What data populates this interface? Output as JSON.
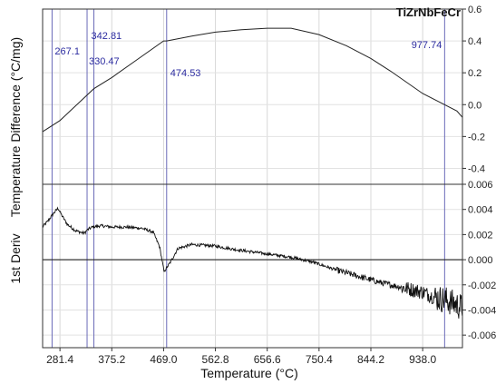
{
  "chart_data": [
    {
      "panel": "top",
      "type": "line",
      "title": "TiZrNbFeCr",
      "ylim": [
        -0.5,
        0.6
      ],
      "yticks": [
        "0.6",
        "0.4",
        "0.2",
        "0.0",
        "-0.2",
        "-0.4"
      ],
      "ylabel": "Temperature Difference (°C/mg)",
      "xlim": [
        250,
        1010
      ],
      "grid": true,
      "series": [
        {
          "x": [
            250,
            281.4,
            330.47,
            342.81,
            375.2,
            420,
            469.0,
            474.53,
            520,
            562.8,
            610,
            656.6,
            700,
            750.4,
            800,
            844.2,
            880,
            938.0,
            977.74,
            1000,
            1010
          ],
          "y": [
            -0.17,
            -0.1,
            0.06,
            0.1,
            0.17,
            0.28,
            0.4,
            0.4,
            0.43,
            0.455,
            0.47,
            0.48,
            0.48,
            0.44,
            0.37,
            0.29,
            0.21,
            0.07,
            0.0,
            -0.04,
            -0.08
          ]
        }
      ],
      "markers": [
        {
          "x": 267.1,
          "label": "267.1"
        },
        {
          "x": 330.47,
          "label": "330.47"
        },
        {
          "x": 342.81,
          "label": "342.81"
        },
        {
          "x": 474.53,
          "label": "474.53"
        },
        {
          "x": 977.74,
          "label": "977.74"
        }
      ]
    },
    {
      "panel": "bottom",
      "type": "line",
      "ylabel": "1st Deriv",
      "ylim": [
        -0.007,
        0.006
      ],
      "yticks": [
        "0.006",
        "0.004",
        "0.002",
        "0.000",
        "-0.002",
        "-0.004",
        "-0.006"
      ],
      "xlim": [
        250,
        1010
      ],
      "xlabel": "Temperature (°C)",
      "xticks": [
        "281.4",
        "375.2",
        "469.0",
        "562.8",
        "656.6",
        "750.4",
        "844.2",
        "938.0"
      ],
      "grid": true,
      "zero_line": true,
      "series": [
        {
          "x": [
            250,
            260,
            270,
            278,
            285,
            295,
            310,
            325,
            332,
            340,
            355,
            375,
            400,
            430,
            450,
            462,
            468,
            470,
            472,
            480,
            495,
            520,
            560,
            600,
            650,
            700,
            740,
            780,
            820,
            860,
            900,
            940,
            960,
            980,
            1000,
            1010
          ],
          "y": [
            0.0026,
            0.0031,
            0.0037,
            0.0041,
            0.0035,
            0.0028,
            0.0023,
            0.0021,
            0.0024,
            0.0026,
            0.0027,
            0.0026,
            0.0026,
            0.0025,
            0.0022,
            0.001,
            -0.0005,
            -0.001,
            -0.0008,
            -0.0003,
            0.0009,
            0.0012,
            0.0011,
            0.0008,
            0.0005,
            0.0002,
            -0.0002,
            -0.0008,
            -0.0013,
            -0.0018,
            -0.0022,
            -0.0026,
            -0.003,
            -0.0032,
            -0.0036,
            -0.0038
          ]
        }
      ]
    }
  ]
}
